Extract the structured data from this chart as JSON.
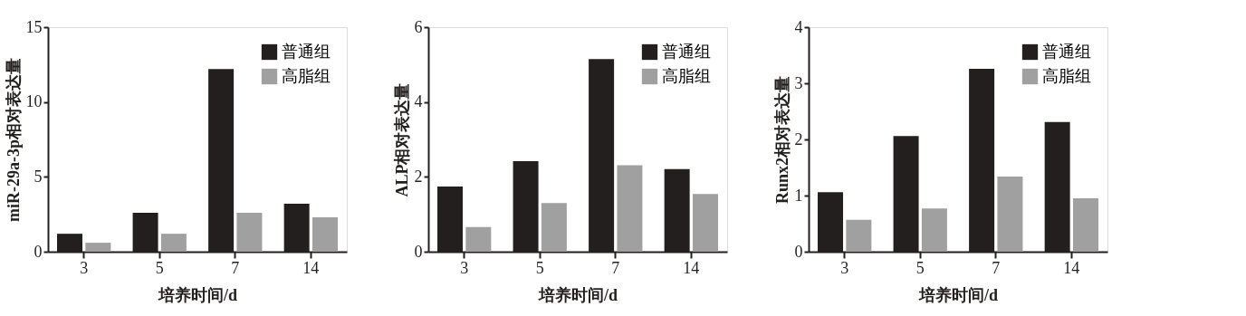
{
  "chart_data": [
    {
      "type": "bar",
      "xlabel": "培养时间/d",
      "ylabel": "miR-29a-3p相对表达量",
      "categories": [
        "3",
        "5",
        "7",
        "14"
      ],
      "ylim": [
        0,
        15
      ],
      "yticks": [
        0,
        5,
        10,
        15
      ],
      "legend": "top right",
      "grid": false,
      "series": [
        {
          "name": "普通组",
          "color": "#231f1f",
          "values": [
            1.2,
            2.6,
            12.2,
            3.2
          ]
        },
        {
          "name": "高脂组",
          "color": "#a0a0a0",
          "values": [
            0.6,
            1.2,
            2.6,
            2.3
          ]
        }
      ]
    },
    {
      "type": "bar",
      "xlabel": "培养时间/d",
      "ylabel": "ALP相对表达量",
      "categories": [
        "3",
        "5",
        "7",
        "14"
      ],
      "ylim": [
        0,
        6
      ],
      "yticks": [
        0,
        2,
        4,
        6
      ],
      "legend": "top right",
      "grid": false,
      "series": [
        {
          "name": "普通组",
          "color": "#231f1f",
          "values": [
            1.74,
            2.42,
            5.15,
            2.21
          ]
        },
        {
          "name": "高脂组",
          "color": "#a0a0a0",
          "values": [
            0.66,
            1.3,
            2.31,
            1.54
          ]
        }
      ]
    },
    {
      "type": "bar",
      "xlabel": "培养时间/d",
      "ylabel": "Runx2相对表达量",
      "categories": [
        "3",
        "5",
        "7",
        "14"
      ],
      "ylim": [
        0,
        4
      ],
      "yticks": [
        0,
        1,
        2,
        3,
        4
      ],
      "legend": "top right",
      "grid": false,
      "series": [
        {
          "name": "普通组",
          "color": "#231f1f",
          "values": [
            1.06,
            2.06,
            3.26,
            2.31
          ]
        },
        {
          "name": "高脂组",
          "color": "#a0a0a0",
          "values": [
            0.57,
            0.77,
            1.34,
            0.95
          ]
        }
      ]
    }
  ]
}
